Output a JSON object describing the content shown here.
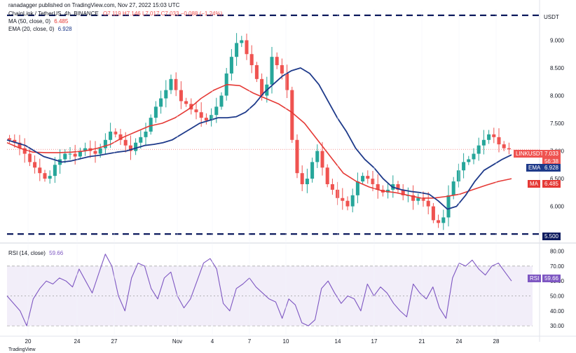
{
  "header": {
    "published": "ranadagger published on TradingView.com, Nov 27, 2022 15:03 UTC",
    "symbol_line": "ChainLink / TetherUS, 4h, BINANCE",
    "ohlc": "O7.119 H7.146 L7.017 C7.033 −0.088 (−1.24%)",
    "ma_label": "MA (50, close, 0)",
    "ma_value": "6.485",
    "ema_label": "EMA (20, close, 0)",
    "ema_value": "6.928",
    "rsi_label": "RSI (14, close)",
    "rsi_value": "59.66",
    "currency": "USDT",
    "footer": "TradingView"
  },
  "tags": {
    "price_name": "LINKUSDT",
    "price_value": "7.033",
    "countdown": "56:38",
    "ema_name": "EMA",
    "ema_value": "6.928",
    "ma_name": "MA",
    "ma_value": "6.485",
    "level_value": "5.500",
    "rsi_name": "RSI",
    "rsi_value": "59.66"
  },
  "colors": {
    "up": "#26a69a",
    "down": "#ef5350",
    "ema": "#1e3a8a",
    "ma": "#e53935",
    "rsi": "#7e57c2",
    "level": "#0d1b5e"
  },
  "chart_data": {
    "type": "line",
    "price_axis": {
      "ylim": [
        5.35,
        9.55
      ],
      "ticks": [
        "6.000",
        "6.500",
        "7.000",
        "7.500",
        "8.000",
        "8.500",
        "9.000"
      ]
    },
    "x_ticks": [
      "20",
      "24",
      "27",
      "Nov",
      "4",
      "7",
      "10",
      "14",
      "17",
      "21",
      "24",
      "28"
    ],
    "horizontal_levels": [
      9.45,
      5.5
    ],
    "close_path": [
      7.2,
      7.15,
      7.05,
      6.95,
      6.8,
      6.7,
      6.6,
      6.5,
      6.55,
      6.75,
      6.85,
      6.95,
      6.95,
      6.9,
      7.0,
      7.05,
      7.0,
      6.95,
      7.05,
      7.2,
      7.35,
      7.3,
      7.2,
      7.1,
      7.0,
      7.15,
      7.25,
      7.35,
      7.6,
      7.8,
      7.95,
      8.1,
      8.3,
      8.1,
      7.9,
      7.85,
      7.75,
      7.7,
      7.6,
      7.55,
      7.65,
      7.8,
      8.0,
      8.4,
      8.7,
      8.95,
      9.0,
      8.75,
      8.55,
      8.3,
      8.0,
      8.2,
      8.7,
      8.55,
      8.4,
      8.1,
      7.2,
      6.6,
      6.4,
      6.5,
      6.8,
      7.0,
      6.7,
      6.4,
      6.3,
      6.15,
      6.1,
      6.0,
      6.2,
      6.45,
      6.55,
      6.5,
      6.4,
      6.3,
      6.25,
      6.3,
      6.4,
      6.3,
      6.2,
      6.2,
      6.1,
      6.15,
      6.1,
      6.0,
      5.75,
      5.7,
      5.8,
      6.2,
      6.45,
      6.65,
      6.8,
      6.85,
      6.95,
      7.1,
      7.2,
      7.3,
      7.25,
      7.12,
      7.05,
      7.03
    ],
    "series": [
      {
        "name": "EMA (20, close, 0)",
        "values": [
          7.2,
          7.15,
          7.1,
          7.0,
          6.9,
          6.85,
          6.8,
          6.82,
          6.86,
          6.9,
          6.92,
          6.95,
          6.98,
          7.0,
          7.05,
          7.1,
          7.12,
          7.15,
          7.2,
          7.3,
          7.4,
          7.5,
          7.55,
          7.6,
          7.6,
          7.62,
          7.7,
          7.85,
          8.05,
          8.2,
          8.35,
          8.45,
          8.5,
          8.4,
          8.2,
          7.9,
          7.6,
          7.35,
          7.05,
          6.85,
          6.7,
          6.5,
          6.35,
          6.3,
          6.27,
          6.25,
          6.22,
          6.1,
          5.95,
          6.0,
          6.2,
          6.45,
          6.65,
          6.75,
          6.85,
          6.93
        ]
      },
      {
        "name": "MA (50, close, 0)",
        "values": [
          7.15,
          7.05,
          6.98,
          6.97,
          6.97,
          6.98,
          7.0,
          7.05,
          7.12,
          7.25,
          7.35,
          7.45,
          7.5,
          7.6,
          7.75,
          7.95,
          8.1,
          8.2,
          8.18,
          8.05,
          7.95,
          7.85,
          7.7,
          7.5,
          7.2,
          6.9,
          6.6,
          6.45,
          6.35,
          6.28,
          6.25,
          6.2,
          6.15,
          6.15,
          6.18,
          6.22,
          6.3,
          6.38,
          6.45,
          6.5
        ]
      },
      {
        "name": "RSI (14, close)",
        "values": [
          50,
          45,
          40,
          30,
          48,
          55,
          60,
          58,
          62,
          60,
          56,
          68,
          60,
          52,
          65,
          78,
          70,
          50,
          40,
          62,
          72,
          70,
          55,
          48,
          62,
          66,
          50,
          42,
          48,
          60,
          72,
          75,
          68,
          45,
          40,
          55,
          58,
          62,
          56,
          52,
          48,
          46,
          35,
          48,
          44,
          32,
          30,
          34,
          55,
          60,
          52,
          45,
          50,
          48,
          40,
          58,
          50,
          56,
          52,
          45,
          40,
          36,
          58,
          52,
          48,
          56,
          42,
          35,
          62,
          72,
          70,
          74,
          68,
          64,
          70,
          72,
          66,
          60
        ]
      }
    ],
    "rsi_axis": {
      "ylim": [
        24,
        84
      ],
      "ticks": [
        "30.00",
        "40.00",
        "50.00",
        "60.00",
        "70.00",
        "80.00"
      ],
      "band": [
        30,
        70
      ]
    }
  }
}
